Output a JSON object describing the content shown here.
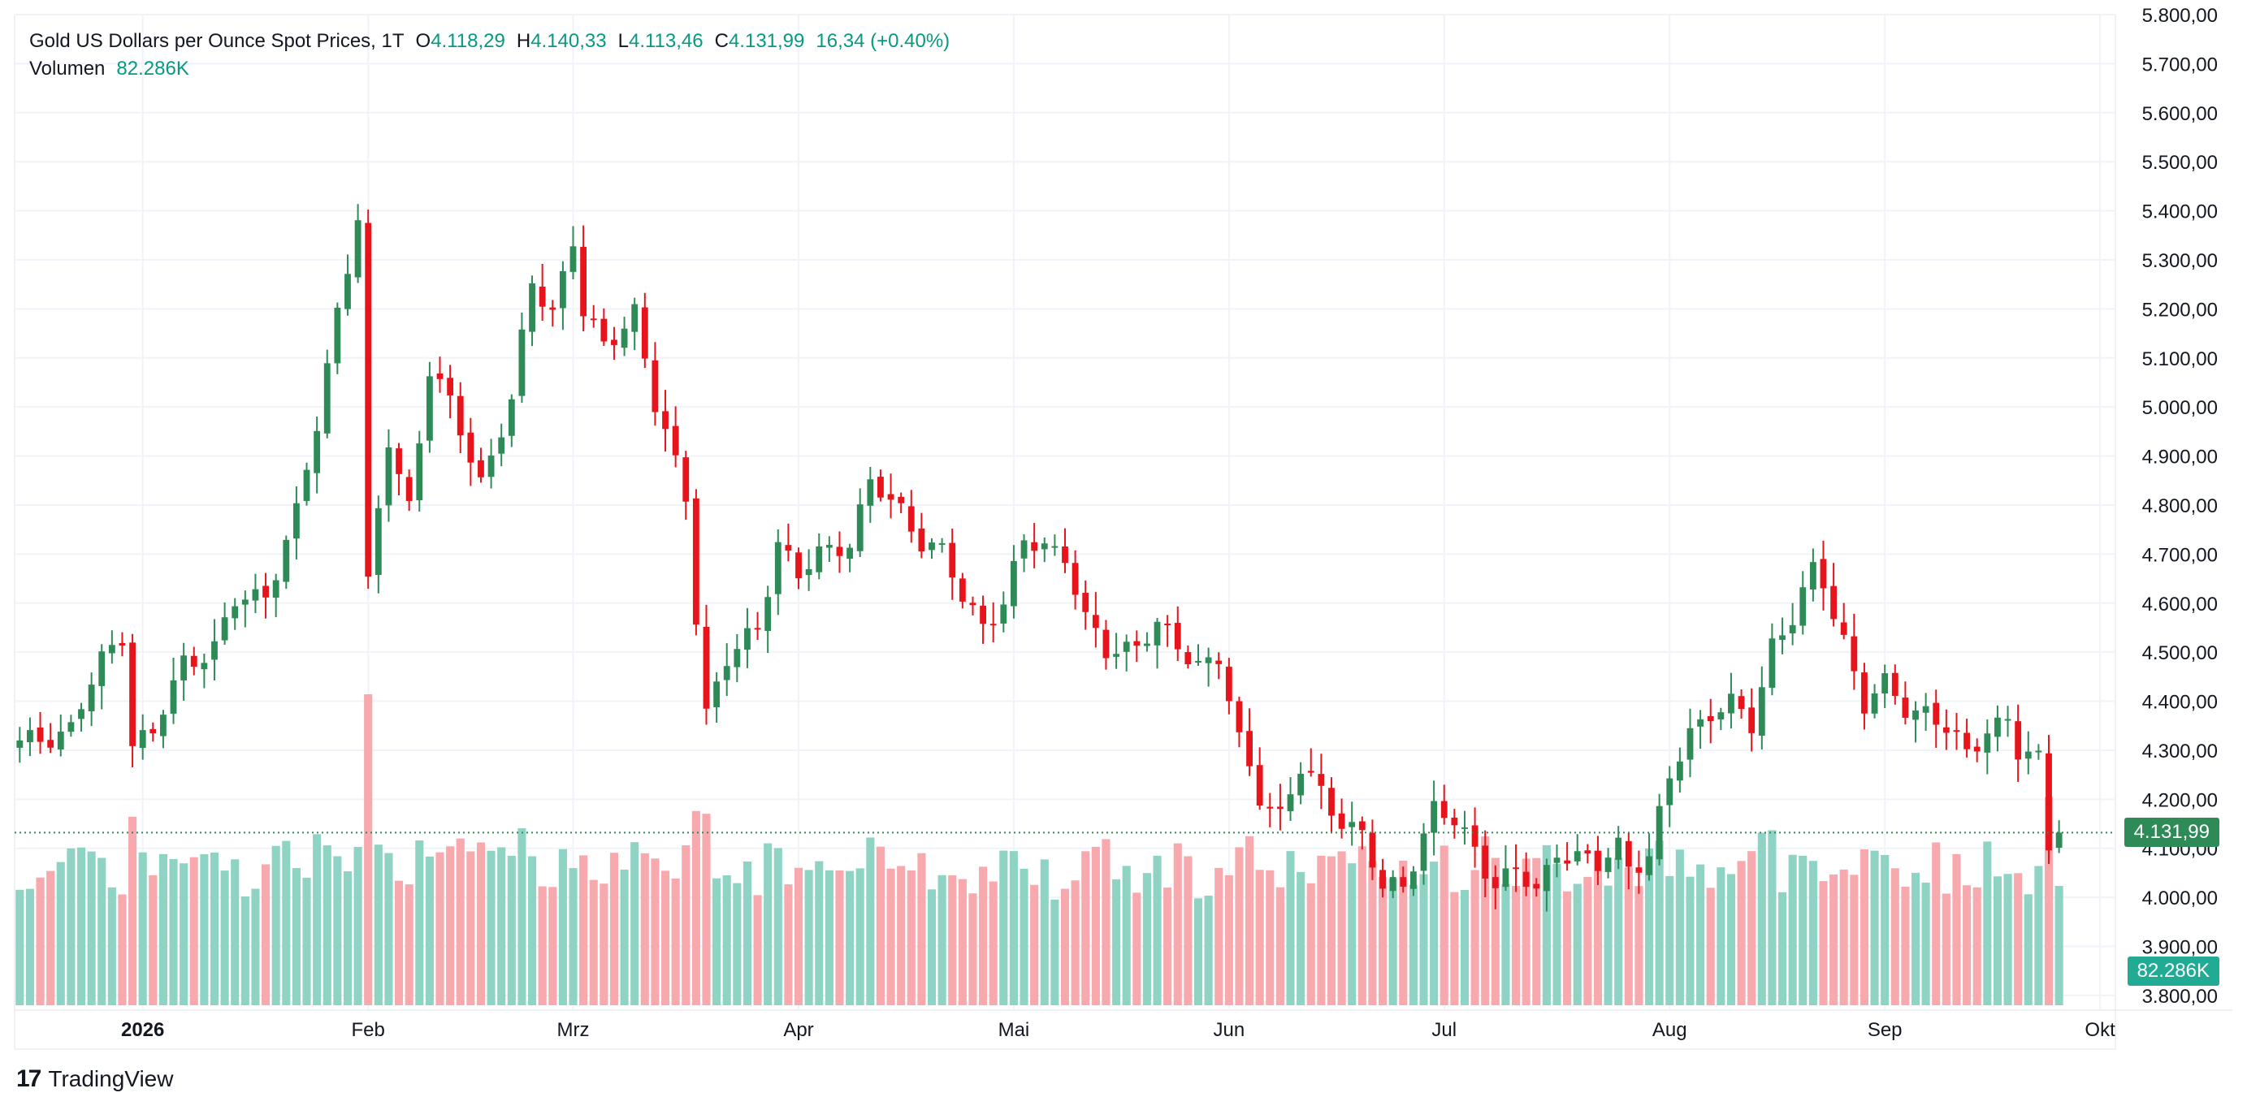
{
  "legend": {
    "symbol": "Gold US Dollars per Ounce Spot Prices, 1T",
    "o_label": "O",
    "o_value": "4.118,29",
    "h_label": "H",
    "h_value": "4.140,33",
    "l_label": "L",
    "l_value": "4.113,46",
    "c_label": "C",
    "c_value": "4.131,99",
    "change": "16,34 (+0.40%)",
    "volume_label": "Volumen",
    "volume_value": "82.286K"
  },
  "last_price_tag": "4.131,99",
  "last_volume_tag": "82.286K",
  "brand": "TradingView",
  "colors": {
    "up": "#2e8b57",
    "down": "#e8141c",
    "vol_up": "#8fd3c4",
    "vol_down": "#f7a9ae",
    "tag_price": "#2e8b57",
    "tag_volume": "#22ab94",
    "grid": "#f0f3fa",
    "text": "#131722"
  },
  "chart_data": {
    "type": "candlestick",
    "instrument": "Gold US Dollars per Ounce Spot Prices",
    "interval": "1T",
    "y_ticks": [
      "3.800,00",
      "3.900,00",
      "4.000,00",
      "4.100,00",
      "4.200,00",
      "4.300,00",
      "4.400,00",
      "4.500,00",
      "4.600,00",
      "4.700,00",
      "4.800,00",
      "4.900,00",
      "5.000,00",
      "5.100,00",
      "5.200,00",
      "5.300,00",
      "5.400,00",
      "5.500,00",
      "5.600,00",
      "5.700,00",
      "5.800,00"
    ],
    "y_tick_values": [
      3800,
      3900,
      4000,
      4100,
      4200,
      4300,
      4400,
      4500,
      4600,
      4700,
      4800,
      4900,
      5000,
      5100,
      5200,
      5300,
      5400,
      5500,
      5600,
      5700,
      5800
    ],
    "ylim": [
      3780,
      5800
    ],
    "x_ticks": [
      {
        "label": "2026",
        "index": 12,
        "bold": true
      },
      {
        "label": "Feb",
        "index": 34
      },
      {
        "label": "Mrz",
        "index": 54
      },
      {
        "label": "Apr",
        "index": 76
      },
      {
        "label": "Mai",
        "index": 97
      },
      {
        "label": "Jun",
        "index": 118
      },
      {
        "label": "Jul",
        "index": 139
      },
      {
        "label": "Aug",
        "index": 161
      },
      {
        "label": "Sep",
        "index": 182
      },
      {
        "label": "Okt",
        "index": 203
      }
    ],
    "close_points": [
      [
        0,
        4310
      ],
      [
        5,
        4345
      ],
      [
        8,
        4480
      ],
      [
        10,
        4540
      ],
      [
        11,
        4320
      ],
      [
        13,
        4330
      ],
      [
        16,
        4480
      ],
      [
        19,
        4510
      ],
      [
        21,
        4600
      ],
      [
        24,
        4620
      ],
      [
        27,
        4780
      ],
      [
        29,
        4960
      ],
      [
        31,
        5200
      ],
      [
        33,
        5390
      ],
      [
        34,
        4630
      ],
      [
        36,
        4930
      ],
      [
        38,
        4800
      ],
      [
        40,
        5080
      ],
      [
        42,
        5000
      ],
      [
        45,
        4850
      ],
      [
        48,
        5010
      ],
      [
        50,
        5250
      ],
      [
        52,
        5200
      ],
      [
        54,
        5340
      ],
      [
        55,
        5190
      ],
      [
        57,
        5120
      ],
      [
        60,
        5200
      ],
      [
        62,
        5000
      ],
      [
        65,
        4820
      ],
      [
        66,
        4580
      ],
      [
        67,
        4380
      ],
      [
        69,
        4480
      ],
      [
        72,
        4550
      ],
      [
        74,
        4730
      ],
      [
        76,
        4650
      ],
      [
        78,
        4700
      ],
      [
        81,
        4730
      ],
      [
        83,
        4840
      ],
      [
        86,
        4790
      ],
      [
        88,
        4730
      ],
      [
        90,
        4700
      ],
      [
        92,
        4610
      ],
      [
        94,
        4560
      ],
      [
        96,
        4600
      ],
      [
        98,
        4720
      ],
      [
        100,
        4720
      ],
      [
        102,
        4700
      ],
      [
        104,
        4560
      ],
      [
        106,
        4500
      ],
      [
        109,
        4520
      ],
      [
        111,
        4550
      ],
      [
        113,
        4510
      ],
      [
        115,
        4480
      ],
      [
        117,
        4490
      ],
      [
        119,
        4310
      ],
      [
        121,
        4210
      ],
      [
        123,
        4170
      ],
      [
        125,
        4260
      ],
      [
        127,
        4210
      ],
      [
        129,
        4160
      ],
      [
        131,
        4130
      ],
      [
        133,
        4010
      ],
      [
        135,
        4030
      ],
      [
        136,
        4080
      ],
      [
        138,
        4180
      ],
      [
        140,
        4150
      ],
      [
        142,
        4100
      ],
      [
        144,
        4030
      ],
      [
        146,
        4050
      ],
      [
        148,
        4010
      ],
      [
        150,
        4100
      ],
      [
        152,
        4080
      ],
      [
        154,
        4060
      ],
      [
        156,
        4110
      ],
      [
        157,
        4070
      ],
      [
        159,
        4080
      ],
      [
        161,
        4240
      ],
      [
        163,
        4340
      ],
      [
        165,
        4380
      ],
      [
        167,
        4390
      ],
      [
        169,
        4350
      ],
      [
        171,
        4520
      ],
      [
        173,
        4570
      ],
      [
        175,
        4660
      ],
      [
        176,
        4640
      ],
      [
        178,
        4530
      ],
      [
        180,
        4390
      ],
      [
        182,
        4430
      ],
      [
        184,
        4390
      ],
      [
        186,
        4380
      ],
      [
        188,
        4340
      ],
      [
        190,
        4290
      ],
      [
        192,
        4350
      ],
      [
        194,
        4360
      ],
      [
        195,
        4290
      ],
      [
        197,
        4280
      ],
      [
        198,
        4110
      ],
      [
        199,
        4131.99
      ]
    ],
    "last_close": 4131.99,
    "volume_values": [
      82.286
    ],
    "volume_unit": "K"
  }
}
